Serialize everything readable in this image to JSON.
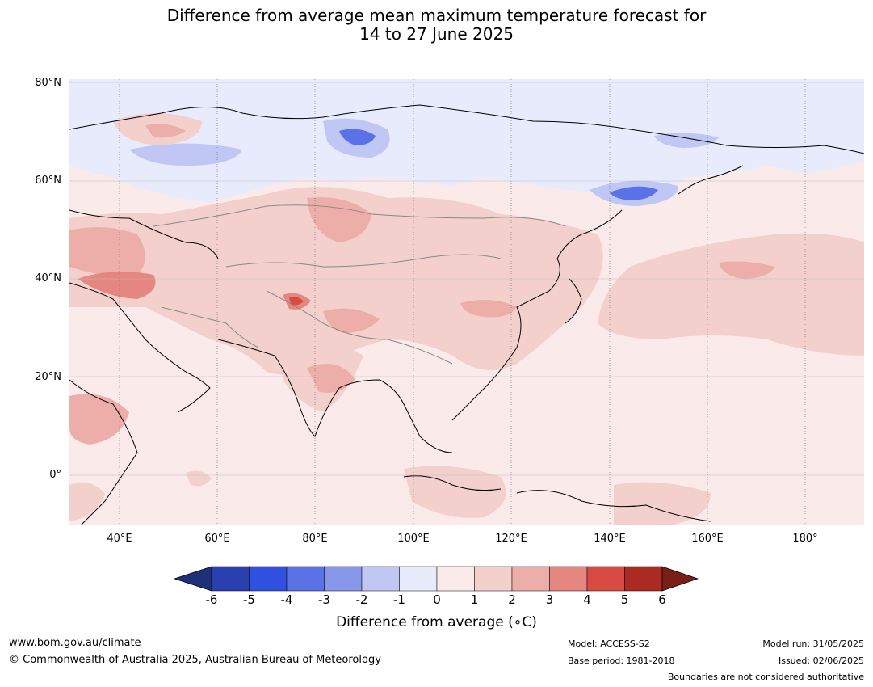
{
  "title_line1": "Difference from average mean maximum temperature forecast for",
  "title_line2": "14 to 27 June 2025",
  "y_ticks": [
    "80°N",
    "60°N",
    "40°N",
    "20°N",
    "0°"
  ],
  "x_ticks": [
    "40°E",
    "60°E",
    "80°E",
    "100°E",
    "120°E",
    "140°E",
    "160°E",
    "180°"
  ],
  "colorbar": {
    "ticks": [
      "-6",
      "-5",
      "-4",
      "-3",
      "-2",
      "-1",
      "0",
      "1",
      "2",
      "3",
      "4",
      "5",
      "6"
    ],
    "colors": [
      "#1f2f7a",
      "#2a3fb0",
      "#3050e0",
      "#5b72e6",
      "#8797ea",
      "#c0c7f4",
      "#e8ebfb",
      "#fbeaea",
      "#f4d0cd",
      "#edaeaa",
      "#e68680",
      "#d94a42",
      "#ab2a22",
      "#7a1e18"
    ],
    "label": "Difference from average (∘C)"
  },
  "footer": {
    "url": "www.bom.gov.au/climate",
    "copyright": "© Commonwealth of Australia 2025, Australian Bureau of Meteorology",
    "model": "Model: ACCESS-S2",
    "base_period": "Base period: 1981-2018",
    "model_run": "Model run: 31/05/2025",
    "issued": "Issued: 02/06/2025",
    "disclaimer": "Boundaries are not considered authoritative"
  }
}
